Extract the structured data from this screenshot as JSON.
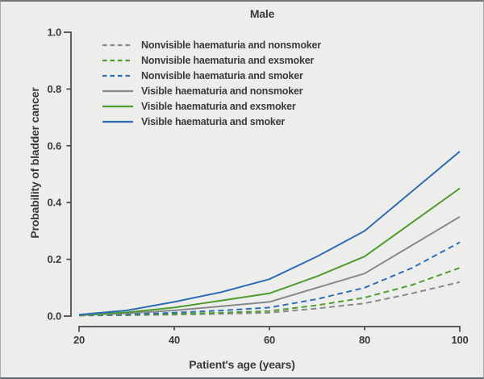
{
  "figure": {
    "background_color": "#edeeec",
    "border_color": "#6e7372"
  },
  "chart_data": {
    "type": "line",
    "title": "Male",
    "xlabel": "Patient's age (years)",
    "ylabel": "Probability of bladder cancer",
    "x": [
      20,
      30,
      40,
      50,
      60,
      70,
      80,
      90,
      100
    ],
    "xlim": [
      20,
      100
    ],
    "ylim": [
      0.0,
      1.0
    ],
    "xtick_labels": [
      "20",
      "40",
      "60",
      "80",
      "100"
    ],
    "xtick_values": [
      20,
      40,
      60,
      80,
      100
    ],
    "ytick_labels": [
      "0.0",
      "0.2",
      "0.4",
      "0.6",
      "0.8",
      "1.0"
    ],
    "ytick_values": [
      0.0,
      0.2,
      0.4,
      0.6,
      0.8,
      1.0
    ],
    "grid": false,
    "legend_position": "inside-top-left",
    "axis_color": "#464646",
    "text_color": "#3a3a3a",
    "series": [
      {
        "name": "Nonvisible haematuria and nonsmoker",
        "color": "#85898c",
        "style": "dashed",
        "values": [
          0.002,
          0.003,
          0.005,
          0.008,
          0.012,
          0.027,
          0.045,
          0.08,
          0.12
        ]
      },
      {
        "name": "Nonvisible haematuria and exsmoker",
        "color": "#4e9c2e",
        "style": "dashed",
        "values": [
          0.002,
          0.004,
          0.007,
          0.012,
          0.018,
          0.038,
          0.065,
          0.11,
          0.17
        ]
      },
      {
        "name": "Nonvisible haematuria and smoker",
        "color": "#2e6db4",
        "style": "dashed",
        "values": [
          0.003,
          0.006,
          0.012,
          0.02,
          0.03,
          0.06,
          0.1,
          0.17,
          0.26
        ]
      },
      {
        "name": "Visible haematuria and nonsmoker",
        "color": "#85898c",
        "style": "solid",
        "values": [
          0.003,
          0.01,
          0.02,
          0.035,
          0.05,
          0.1,
          0.15,
          0.25,
          0.35
        ]
      },
      {
        "name": "Visible haematuria and exsmoker",
        "color": "#4e9c2e",
        "style": "solid",
        "values": [
          0.004,
          0.013,
          0.03,
          0.055,
          0.08,
          0.14,
          0.21,
          0.33,
          0.45
        ]
      },
      {
        "name": "Visible haematuria and smoker",
        "color": "#2e6db4",
        "style": "solid",
        "values": [
          0.005,
          0.02,
          0.05,
          0.085,
          0.13,
          0.21,
          0.3,
          0.44,
          0.58
        ]
      }
    ]
  }
}
